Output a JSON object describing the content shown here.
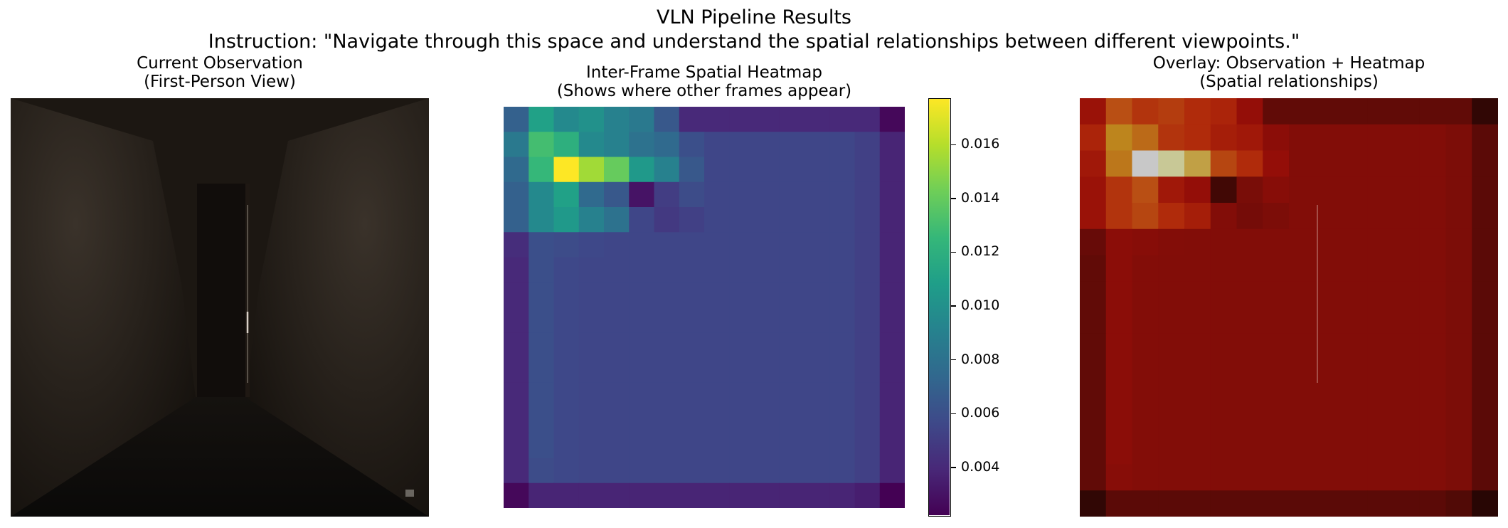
{
  "figure": {
    "title": "VLN Pipeline Results",
    "instruction": "Instruction: \"Navigate through this space and understand the spatial relationships between different viewpoints.\""
  },
  "panels": {
    "observation": {
      "title_line1": "Current Observation",
      "title_line2": "(First-Person View)"
    },
    "heatmap": {
      "title_line1": "Inter-Frame Spatial Heatmap",
      "title_line2": "(Shows where other frames appear)"
    },
    "overlay": {
      "title_line1": "Overlay: Observation + Heatmap",
      "title_line2": "(Spatial relationships)"
    }
  },
  "colors": {
    "viridis": [
      "#440154",
      "#482878",
      "#3e4989",
      "#31688e",
      "#26828e",
      "#1f9e89",
      "#35b779",
      "#6ece58",
      "#b5de2b",
      "#fde725"
    ],
    "overlay_tint": "#7a0e08",
    "room_dark": "#1c1712"
  },
  "chart_data": {
    "type": "heatmap",
    "title": "Inter-Frame Spatial Heatmap (Shows where other frames appear)",
    "grid_size": [
      16,
      16
    ],
    "vmin": 0.0022,
    "vmax": 0.0177,
    "colorbar": {
      "ticks": [
        0.004,
        0.006,
        0.008,
        0.01,
        0.012,
        0.014,
        0.016
      ],
      "tick_labels": [
        "0.004",
        "0.006",
        "0.008",
        "0.010",
        "0.012",
        "0.014",
        "0.016"
      ]
    },
    "values": [
      [
        0.007,
        0.011,
        0.0095,
        0.01,
        0.009,
        0.0085,
        0.0065,
        0.004,
        0.004,
        0.004,
        0.004,
        0.004,
        0.004,
        0.004,
        0.004,
        0.0025
      ],
      [
        0.0085,
        0.013,
        0.012,
        0.0095,
        0.009,
        0.008,
        0.0075,
        0.006,
        0.0055,
        0.0055,
        0.0055,
        0.0055,
        0.0055,
        0.0055,
        0.0052,
        0.0038
      ],
      [
        0.0075,
        0.0125,
        0.0177,
        0.0155,
        0.014,
        0.0105,
        0.009,
        0.0065,
        0.0055,
        0.0055,
        0.0055,
        0.0055,
        0.0055,
        0.0055,
        0.0052,
        0.0038
      ],
      [
        0.007,
        0.0095,
        0.011,
        0.0075,
        0.0065,
        0.003,
        0.005,
        0.0058,
        0.0055,
        0.0055,
        0.0055,
        0.0055,
        0.0055,
        0.0055,
        0.0052,
        0.0038
      ],
      [
        0.007,
        0.0095,
        0.0105,
        0.009,
        0.008,
        0.0055,
        0.0048,
        0.0052,
        0.0055,
        0.0055,
        0.0055,
        0.0055,
        0.0055,
        0.0055,
        0.0052,
        0.0038
      ],
      [
        0.0042,
        0.006,
        0.0058,
        0.0056,
        0.0055,
        0.0055,
        0.0055,
        0.0055,
        0.0055,
        0.0055,
        0.0055,
        0.0055,
        0.0055,
        0.0055,
        0.0052,
        0.0038
      ],
      [
        0.004,
        0.006,
        0.0056,
        0.0055,
        0.0055,
        0.0055,
        0.0055,
        0.0055,
        0.0055,
        0.0055,
        0.0055,
        0.0055,
        0.0055,
        0.0055,
        0.0052,
        0.0038
      ],
      [
        0.004,
        0.006,
        0.0056,
        0.0055,
        0.0055,
        0.0055,
        0.0055,
        0.0055,
        0.0055,
        0.0055,
        0.0055,
        0.0055,
        0.0055,
        0.0055,
        0.0052,
        0.0038
      ],
      [
        0.004,
        0.006,
        0.0056,
        0.0055,
        0.0055,
        0.0055,
        0.0055,
        0.0055,
        0.0055,
        0.0055,
        0.0055,
        0.0055,
        0.0055,
        0.0055,
        0.0052,
        0.0038
      ],
      [
        0.004,
        0.006,
        0.0056,
        0.0055,
        0.0055,
        0.0055,
        0.0055,
        0.0055,
        0.0055,
        0.0055,
        0.0055,
        0.0055,
        0.0055,
        0.0055,
        0.0052,
        0.0038
      ],
      [
        0.004,
        0.006,
        0.0056,
        0.0055,
        0.0055,
        0.0055,
        0.0055,
        0.0055,
        0.0055,
        0.0055,
        0.0055,
        0.0055,
        0.0055,
        0.0055,
        0.0052,
        0.0038
      ],
      [
        0.004,
        0.006,
        0.0056,
        0.0055,
        0.0055,
        0.0055,
        0.0055,
        0.0055,
        0.0055,
        0.0055,
        0.0055,
        0.0055,
        0.0055,
        0.0055,
        0.0052,
        0.0038
      ],
      [
        0.004,
        0.006,
        0.0056,
        0.0055,
        0.0055,
        0.0055,
        0.0055,
        0.0055,
        0.0055,
        0.0055,
        0.0055,
        0.0055,
        0.0055,
        0.0055,
        0.0052,
        0.0038
      ],
      [
        0.004,
        0.006,
        0.0056,
        0.0055,
        0.0055,
        0.0055,
        0.0055,
        0.0055,
        0.0055,
        0.0055,
        0.0055,
        0.0055,
        0.0055,
        0.0055,
        0.0052,
        0.0038
      ],
      [
        0.004,
        0.0058,
        0.0056,
        0.0055,
        0.0055,
        0.0055,
        0.0055,
        0.0055,
        0.0055,
        0.0055,
        0.0055,
        0.0055,
        0.0055,
        0.0055,
        0.0052,
        0.0038
      ],
      [
        0.0025,
        0.0038,
        0.0038,
        0.0038,
        0.0038,
        0.0038,
        0.0038,
        0.0038,
        0.0038,
        0.0038,
        0.0038,
        0.0038,
        0.0038,
        0.0038,
        0.0035,
        0.0022
      ]
    ]
  }
}
